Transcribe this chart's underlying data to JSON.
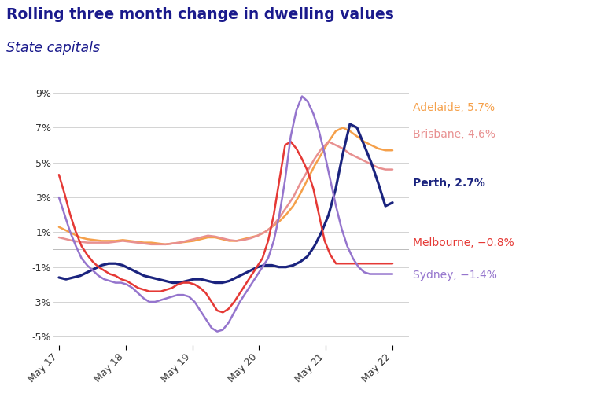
{
  "title_line1": "Rolling three month change in dwelling values",
  "title_line2": "State capitals",
  "title_color": "#1a1a8c",
  "background_color": "#ffffff",
  "ylim": [
    -5.5,
    10.0
  ],
  "yticks": [
    -5,
    -3,
    -1,
    1,
    3,
    5,
    7,
    9
  ],
  "xtick_labels": [
    "May 17",
    "May 18",
    "May 19",
    "May 20",
    "May 21",
    "May 22"
  ],
  "x_tick_positions": [
    0,
    12,
    24,
    36,
    48,
    60
  ],
  "series": {
    "Adelaide": {
      "color": "#F5A04A",
      "linewidth": 1.8,
      "label": "Adelaide, 5.7%",
      "values": [
        1.3,
        1.1,
        0.9,
        0.7,
        0.6,
        0.55,
        0.5,
        0.5,
        0.5,
        0.55,
        0.5,
        0.45,
        0.4,
        0.4,
        0.35,
        0.3,
        0.35,
        0.4,
        0.45,
        0.5,
        0.6,
        0.7,
        0.7,
        0.6,
        0.5,
        0.5,
        0.6,
        0.7,
        0.8,
        1.0,
        1.3,
        1.6,
        2.0,
        2.5,
        3.2,
        4.0,
        4.8,
        5.5,
        6.2,
        6.8,
        7.0,
        6.8,
        6.5,
        6.2,
        6.0,
        5.8,
        5.7,
        5.7
      ]
    },
    "Brisbane": {
      "color": "#E89090",
      "linewidth": 1.8,
      "label": "Brisbane, 4.6%",
      "values": [
        0.7,
        0.6,
        0.5,
        0.45,
        0.4,
        0.4,
        0.4,
        0.4,
        0.45,
        0.5,
        0.45,
        0.4,
        0.35,
        0.3,
        0.3,
        0.3,
        0.35,
        0.4,
        0.5,
        0.6,
        0.7,
        0.8,
        0.75,
        0.65,
        0.55,
        0.5,
        0.55,
        0.65,
        0.8,
        1.0,
        1.3,
        1.8,
        2.4,
        3.0,
        3.8,
        4.5,
        5.2,
        5.8,
        6.2,
        6.0,
        5.8,
        5.5,
        5.3,
        5.1,
        4.9,
        4.7,
        4.6,
        4.6
      ]
    },
    "Perth": {
      "color": "#1a237e",
      "linewidth": 2.3,
      "label": "Perth, 2.7%",
      "values": [
        -1.6,
        -1.7,
        -1.6,
        -1.5,
        -1.3,
        -1.1,
        -0.9,
        -0.8,
        -0.8,
        -0.9,
        -1.1,
        -1.3,
        -1.5,
        -1.6,
        -1.7,
        -1.8,
        -1.9,
        -1.9,
        -1.8,
        -1.7,
        -1.7,
        -1.8,
        -1.9,
        -1.9,
        -1.8,
        -1.6,
        -1.4,
        -1.2,
        -1.0,
        -0.9,
        -0.9,
        -1.0,
        -1.0,
        -0.9,
        -0.7,
        -0.4,
        0.2,
        1.0,
        2.0,
        3.5,
        5.5,
        7.2,
        7.0,
        6.0,
        5.0,
        3.8,
        2.5,
        2.7
      ]
    },
    "Melbourne": {
      "color": "#e53935",
      "linewidth": 1.8,
      "label": "Melbourne, -0.8%",
      "values": [
        4.3,
        3.2,
        2.0,
        1.0,
        0.2,
        -0.3,
        -0.7,
        -1.0,
        -1.2,
        -1.4,
        -1.5,
        -1.7,
        -1.8,
        -2.0,
        -2.2,
        -2.3,
        -2.4,
        -2.4,
        -2.4,
        -2.3,
        -2.2,
        -2.0,
        -1.9,
        -1.9,
        -2.0,
        -2.2,
        -2.5,
        -3.0,
        -3.5,
        -3.6,
        -3.4,
        -3.0,
        -2.5,
        -2.0,
        -1.5,
        -1.0,
        -0.5,
        0.5,
        2.0,
        4.0,
        6.0,
        6.2,
        5.8,
        5.2,
        4.5,
        3.5,
        2.0,
        0.5,
        -0.3,
        -0.8,
        -0.8,
        -0.8,
        -0.8,
        -0.8,
        -0.8,
        -0.8,
        -0.8,
        -0.8,
        -0.8,
        -0.8
      ]
    },
    "Sydney": {
      "color": "#9575cd",
      "linewidth": 1.8,
      "label": "Sydney, -1.4%",
      "values": [
        3.0,
        2.0,
        1.0,
        0.2,
        -0.5,
        -0.9,
        -1.2,
        -1.5,
        -1.7,
        -1.8,
        -1.9,
        -1.9,
        -2.0,
        -2.2,
        -2.5,
        -2.8,
        -3.0,
        -3.0,
        -2.9,
        -2.8,
        -2.7,
        -2.6,
        -2.6,
        -2.7,
        -3.0,
        -3.5,
        -4.0,
        -4.5,
        -4.7,
        -4.6,
        -4.2,
        -3.6,
        -3.0,
        -2.5,
        -2.0,
        -1.5,
        -1.0,
        -0.5,
        0.5,
        2.0,
        4.0,
        6.5,
        8.0,
        8.8,
        8.5,
        7.8,
        6.8,
        5.5,
        4.0,
        2.5,
        1.2,
        0.2,
        -0.5,
        -1.0,
        -1.3,
        -1.4,
        -1.4,
        -1.4,
        -1.4,
        -1.4
      ]
    }
  },
  "legend_items": [
    {
      "label": "Adelaide, 5.7%",
      "color": "#F5A04A",
      "bold": false
    },
    {
      "label": "Brisbane, 4.6%",
      "color": "#E89090",
      "bold": false
    },
    {
      "label": "Perth, 2.7%",
      "color": "#1a237e",
      "bold": true
    },
    {
      "label": "Melbourne, −0.8%",
      "color": "#e53935",
      "bold": false
    },
    {
      "label": "Sydney, −1.4%",
      "color": "#9575cd",
      "bold": false
    }
  ]
}
